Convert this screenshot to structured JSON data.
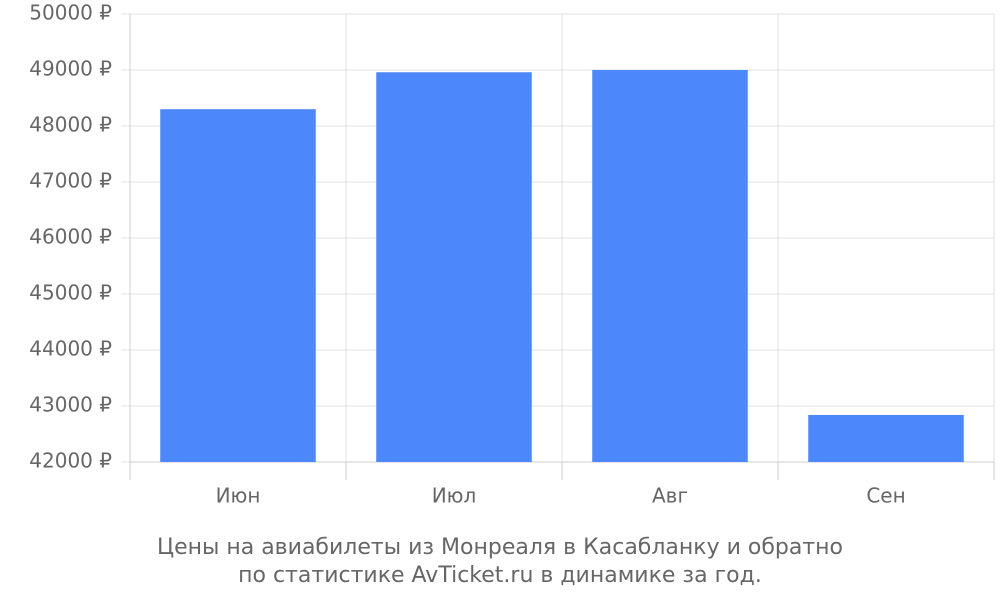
{
  "chart_data": {
    "type": "bar",
    "caption": [
      "Цены на авиабилеты из Монреаля в Касабланку и обратно",
      "по статистике AvTicket.ru в динамике за год."
    ],
    "categories": [
      "Июн",
      "Июл",
      "Авг",
      "Сен"
    ],
    "values": [
      48300,
      48960,
      49000,
      42840
    ],
    "color": "#4d88fb",
    "ylim": [
      42000,
      50000
    ],
    "yticks": [
      {
        "value": 42000,
        "label": "42000 ₽"
      },
      {
        "value": 43000,
        "label": "43000 ₽"
      },
      {
        "value": 44000,
        "label": "44000 ₽"
      },
      {
        "value": 45000,
        "label": "45000 ₽"
      },
      {
        "value": 46000,
        "label": "46000 ₽"
      },
      {
        "value": 47000,
        "label": "47000 ₽"
      },
      {
        "value": 48000,
        "label": "48000 ₽"
      },
      {
        "value": 49000,
        "label": "49000 ₽"
      },
      {
        "value": 50000,
        "label": "50000 ₽"
      }
    ],
    "grid": true
  }
}
